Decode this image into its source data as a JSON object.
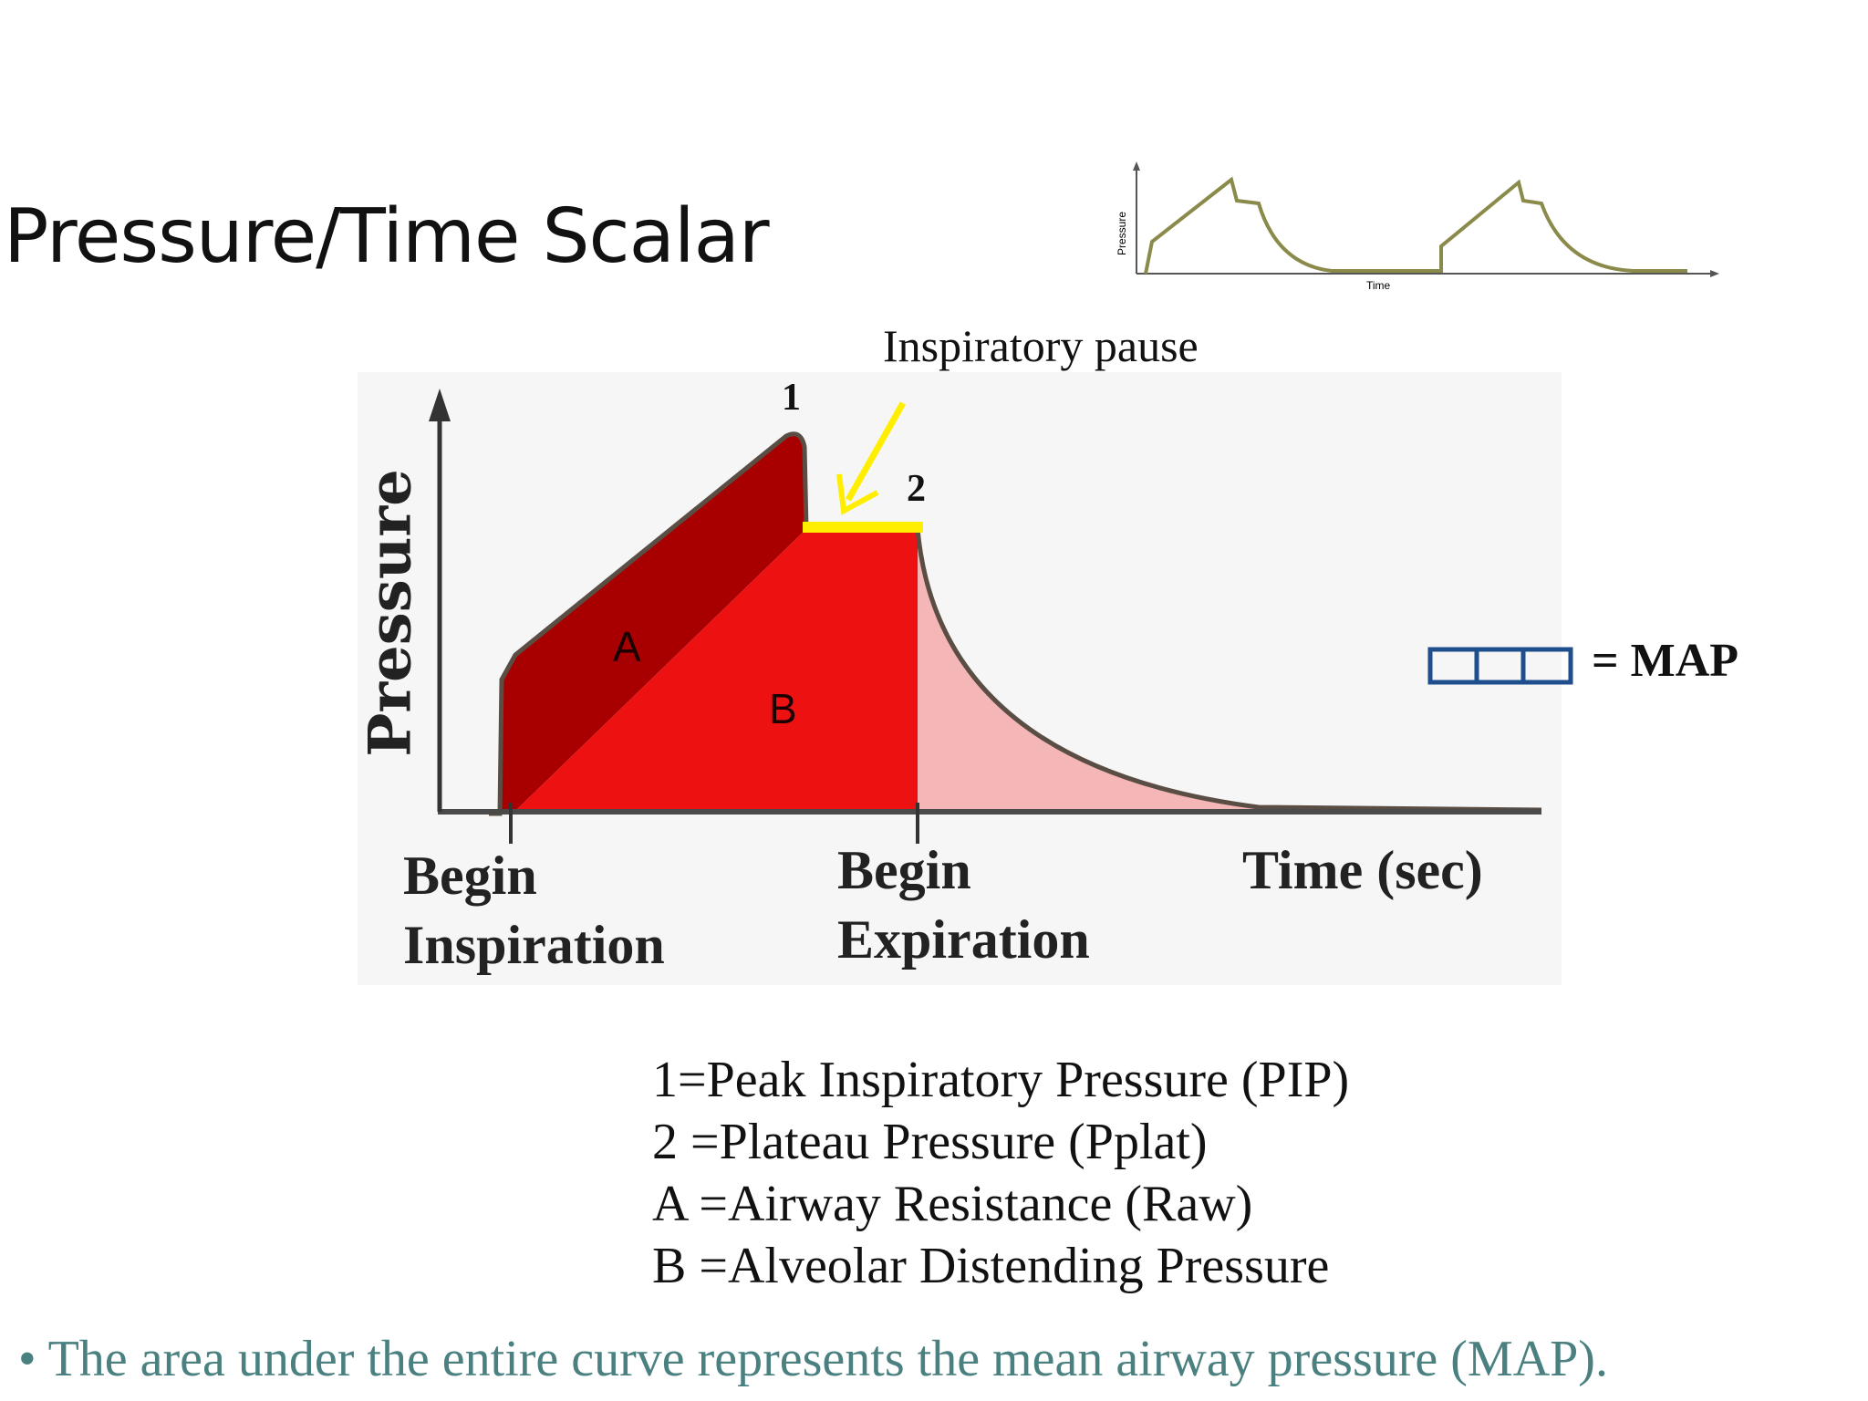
{
  "slide": {
    "title": "Pressure/Time Scalar",
    "bullet": "• The area under the entire curve represents the mean airway pressure (MAP)."
  },
  "thumbnail": {
    "y_label": "Pressure",
    "x_label": "Time",
    "line_color": "#8a8a4a"
  },
  "diagram": {
    "y_label": "Pressure",
    "x_labels": {
      "begin_inspiration": [
        "Begin",
        "Inspiration"
      ],
      "begin_expiration": [
        "Begin",
        "Expiration"
      ],
      "time": "Time (sec)"
    },
    "annotation": "Inspiratory pause",
    "marker_1": "1",
    "marker_2": "2",
    "region_a": "A",
    "region_b": "B",
    "map_label": "= MAP",
    "colors": {
      "region_a": "#a80000",
      "region_b": "#ee1111",
      "expiration": "#f4b6b6",
      "plateau": "#ffee00",
      "arrow": "#ffee00",
      "axis": "#333333",
      "map_box": "#1f4e8c"
    }
  },
  "legend": [
    {
      "key": "1=",
      "text": "Peak Inspiratory Pressure (PIP)"
    },
    {
      "key": "2 =",
      "text": "Plateau Pressure (Pplat)"
    },
    {
      "key": "A =",
      "text": "Airway Resistance (Raw)"
    },
    {
      "key": "B =",
      "text": "Alveolar Distending Pressure"
    }
  ]
}
